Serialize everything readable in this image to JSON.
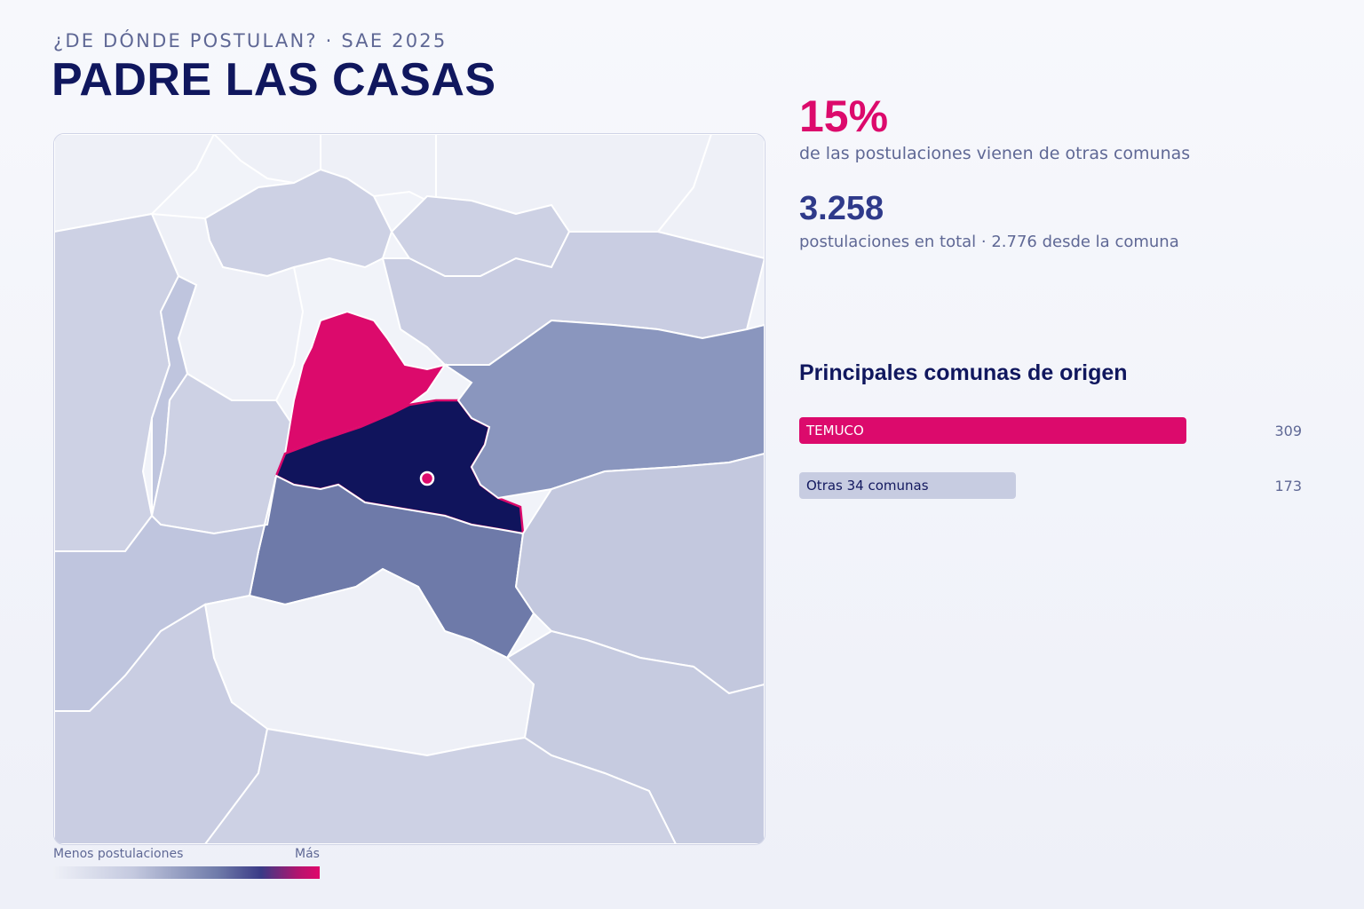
{
  "header": {
    "kicker": "¿DE DÓNDE POSTULAN? · SAE 2025",
    "title": "PADRE LAS CASAS"
  },
  "stats": {
    "percent": "15%",
    "percent_label": "de las postulaciones vienen de otras comunas",
    "total": "3.258",
    "total_label": "postulaciones en total · 2.776 desde la comuna"
  },
  "origins": {
    "title": "Principales comunas de origen",
    "items": [
      {
        "label": "TEMUCO",
        "value": 309,
        "display": "309",
        "color": "#dc0a6c",
        "text_color": "#ffffff"
      },
      {
        "label": "Otras 34 comunas",
        "value": 173,
        "display": "173",
        "color": "#c7cce1",
        "text_color": "#13195f"
      }
    ]
  },
  "legend": {
    "low": "Menos postulaciones",
    "high": "Más"
  },
  "map": {
    "highlight_color": "#dc0a6c",
    "home_color": "#10145c",
    "scale_colors": [
      "#eef0f7",
      "#cdd1e4",
      "#c3c8de",
      "#8a96be",
      "#6e7aa9"
    ]
  }
}
